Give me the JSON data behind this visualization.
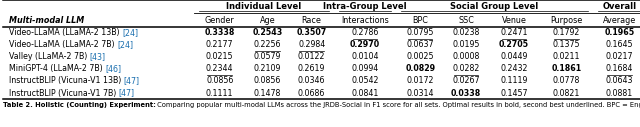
{
  "col_headers_row1": [
    {
      "text": "Individual Level",
      "cols": [
        1,
        2,
        3
      ]
    },
    {
      "text": "Intra-Group Level",
      "cols": [
        4
      ]
    },
    {
      "text": "Social Group Level",
      "cols": [
        5,
        6,
        7,
        8
      ]
    },
    {
      "text": "Overall",
      "cols": [
        9
      ]
    }
  ],
  "col_headers_row2": [
    "Multi-modal LLM",
    "Gender",
    "Age",
    "Race",
    "Interactions",
    "BPC",
    "SSC",
    "Venue",
    "Purpose",
    "Average"
  ],
  "rows": [
    {
      "name": "Video-LLaMA (LLaMA-2 13B) ",
      "ref": "[24]",
      "values": [
        "0.3338",
        "0.2543",
        "0.3507",
        "0.2786",
        "0.0795",
        "0.0238",
        "0.2471",
        "0.1792",
        "0.1965"
      ],
      "bold": [
        true,
        true,
        true,
        false,
        false,
        false,
        false,
        false,
        true
      ],
      "underline": [
        false,
        false,
        false,
        true,
        true,
        false,
        true,
        true,
        false
      ]
    },
    {
      "name": "Video-LLaMA (LLaMA-2 7B) ",
      "ref": "[24]",
      "values": [
        "0.2177",
        "0.2256",
        "0.2984",
        "0.2970",
        "0.0637",
        "0.0195",
        "0.2705",
        "0.1375",
        "0.1645"
      ],
      "bold": [
        false,
        false,
        false,
        true,
        false,
        false,
        true,
        false,
        false
      ],
      "underline": [
        false,
        true,
        true,
        false,
        false,
        false,
        false,
        false,
        false
      ]
    },
    {
      "name": "Valley (LLaMA-2 7B) ",
      "ref": "[43]",
      "values": [
        "0.0215",
        "0.0579",
        "0.0122",
        "0.0104",
        "0.0025",
        "0.0008",
        "0.0449",
        "0.0211",
        "0.0217"
      ],
      "bold": [
        false,
        false,
        false,
        false,
        false,
        false,
        false,
        false,
        false
      ],
      "underline": [
        false,
        false,
        false,
        false,
        false,
        false,
        false,
        false,
        false
      ]
    },
    {
      "name": "MiniGPT-4 (LLaMA-2 7B) ",
      "ref": "[46]",
      "values": [
        "0.2344",
        "0.2109",
        "0.2619",
        "0.0994",
        "0.0829",
        "0.0282",
        "0.2432",
        "0.1861",
        "0.1684"
      ],
      "bold": [
        false,
        false,
        false,
        false,
        true,
        false,
        false,
        true,
        false
      ],
      "underline": [
        true,
        false,
        false,
        false,
        false,
        true,
        false,
        false,
        true
      ]
    },
    {
      "name": "InstructBLIP (Vicuna-V1 13B) ",
      "ref": "[47]",
      "values": [
        "0.0856",
        "0.0856",
        "0.0346",
        "0.0542",
        "0.0172",
        "0.0267",
        "0.1119",
        "0.0778",
        "0.0643"
      ],
      "bold": [
        false,
        false,
        false,
        false,
        false,
        false,
        false,
        false,
        false
      ],
      "underline": [
        false,
        false,
        false,
        false,
        false,
        false,
        false,
        false,
        false
      ]
    },
    {
      "name": "InstructBLIP (Vicuna-V1 7B) ",
      "ref": "[47]",
      "values": [
        "0.1111",
        "0.1478",
        "0.0686",
        "0.0841",
        "0.0314",
        "0.0338",
        "0.1457",
        "0.0821",
        "0.0881"
      ],
      "bold": [
        false,
        false,
        false,
        false,
        false,
        true,
        false,
        false,
        false
      ],
      "underline": [
        false,
        false,
        false,
        false,
        false,
        false,
        false,
        false,
        false
      ]
    }
  ],
  "ref_color": "#1a6faf",
  "caption_bold": "Table 2. Holistic (Counting) Experiment:",
  "caption_normal": " Comparing popular multi-modal LLMs across the JRDB-Social in F1 score for all sets. Optimal results in bold, second best underlined. BPC = Engagement of Body Position’s connection with the Content, SSC = Salient Scene Content",
  "bg_color": "#ffffff",
  "fig_width": 6.4,
  "fig_height": 1.27,
  "dpi": 100
}
